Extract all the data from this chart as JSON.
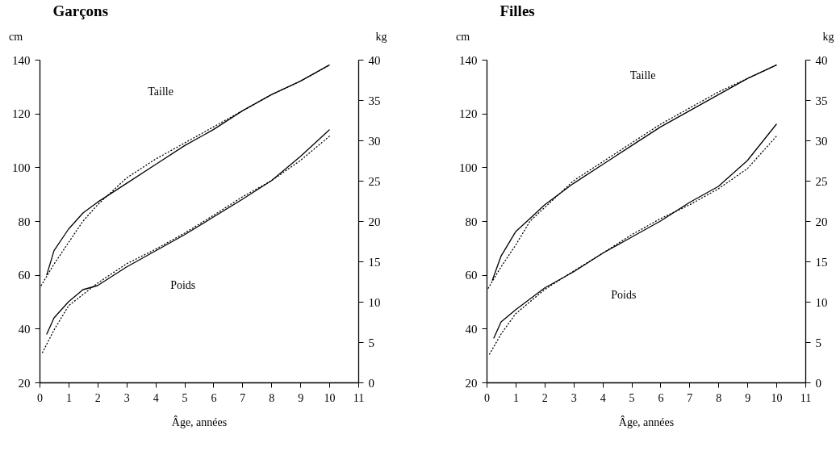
{
  "chart_data": [
    {
      "type": "line",
      "title": "Garçons",
      "xlabel": "Âge, années",
      "ylabel": "cm",
      "y2label": "kg",
      "xlim": [
        0,
        11
      ],
      "xticks": [
        0,
        1,
        2,
        3,
        4,
        5,
        6,
        7,
        8,
        9,
        10,
        11
      ],
      "ylim": [
        20,
        140
      ],
      "yticks": [
        20,
        40,
        60,
        80,
        100,
        120,
        140
      ],
      "y2lim": [
        0,
        40
      ],
      "y2ticks": [
        0,
        5,
        10,
        15,
        20,
        25,
        30,
        35,
        40
      ],
      "grid": false,
      "series": [
        {
          "color": "#000000",
          "line_style": "solid",
          "x": [
            0.25,
            0.5,
            1,
            1.5,
            2,
            3,
            4,
            5,
            6,
            7,
            8,
            9,
            10
          ],
          "values": [
            60,
            69,
            77,
            83,
            87,
            94,
            101,
            108,
            114,
            121,
            127,
            132,
            138
          ]
        },
        {
          "color": "#000000",
          "line_style": "dotted",
          "x": [
            0,
            0.5,
            1,
            1.5,
            2,
            3,
            4,
            5,
            6,
            7,
            8,
            9,
            10
          ],
          "values": [
            55,
            64,
            72,
            80,
            86,
            96,
            103,
            109,
            115,
            121,
            127,
            132,
            138
          ]
        },
        {
          "color": "#000000",
          "line_style": "solid",
          "axis": "y2",
          "x": [
            0.25,
            0.5,
            1,
            1.5,
            2,
            3,
            4,
            5,
            6,
            7,
            8,
            9,
            10
          ],
          "values": [
            6,
            8,
            10,
            11.5,
            12,
            14.3,
            16.3,
            18.3,
            20.5,
            22.7,
            25,
            28,
            31.3
          ]
        },
        {
          "color": "#000000",
          "line_style": "dotted",
          "axis": "y2",
          "x": [
            0.1,
            0.5,
            1,
            2,
            3,
            4,
            5,
            6,
            7,
            8,
            9,
            10
          ],
          "values": [
            3.7,
            6.5,
            9.5,
            12.3,
            14.7,
            16.5,
            18.5,
            20.7,
            23,
            25,
            27.5,
            30.5
          ]
        }
      ],
      "annotations": [
        "Taille",
        "Poids"
      ]
    },
    {
      "type": "line",
      "title": "Filles",
      "xlabel": "Âge, années",
      "ylabel": "cm",
      "y2label": "kg",
      "xlim": [
        0,
        11
      ],
      "xticks": [
        0,
        1,
        2,
        3,
        4,
        5,
        6,
        7,
        8,
        9,
        10,
        11
      ],
      "ylim": [
        20,
        140
      ],
      "yticks": [
        20,
        40,
        60,
        80,
        100,
        120,
        140
      ],
      "y2lim": [
        0,
        40
      ],
      "y2ticks": [
        0,
        5,
        10,
        15,
        20,
        25,
        30,
        35,
        40
      ],
      "grid": false,
      "series": [
        {
          "color": "#000000",
          "line_style": "solid",
          "x": [
            0.2,
            0.5,
            1,
            1.5,
            2,
            3,
            4,
            5,
            6,
            7,
            8,
            9,
            10
          ],
          "values": [
            58,
            67,
            76,
            81,
            86,
            94,
            101,
            108,
            115,
            121,
            127,
            133,
            138
          ]
        },
        {
          "color": "#000000",
          "line_style": "dotted",
          "x": [
            0,
            0.5,
            1,
            1.5,
            2,
            3,
            4,
            5,
            6,
            7,
            8,
            9,
            10
          ],
          "values": [
            54,
            63,
            71,
            80,
            85,
            95,
            102,
            109,
            116,
            122,
            128,
            133,
            138
          ]
        },
        {
          "color": "#000000",
          "line_style": "solid",
          "axis": "y2",
          "x": [
            0.25,
            0.5,
            1,
            2,
            3,
            4,
            5,
            6,
            7,
            8,
            9,
            10
          ],
          "values": [
            5.5,
            7.5,
            9,
            11.7,
            13.7,
            16,
            18,
            20,
            22.3,
            24.3,
            27.5,
            32
          ]
        },
        {
          "color": "#000000",
          "line_style": "dotted",
          "axis": "y2",
          "x": [
            0.1,
            0.5,
            1,
            2,
            3,
            4,
            5,
            6,
            7,
            8,
            9,
            10
          ],
          "values": [
            3.5,
            6,
            8.5,
            11.5,
            13.8,
            16,
            18.3,
            20.3,
            22,
            24,
            26.5,
            30.5
          ]
        }
      ],
      "annotations": [
        "Taille",
        "Poids"
      ]
    }
  ]
}
